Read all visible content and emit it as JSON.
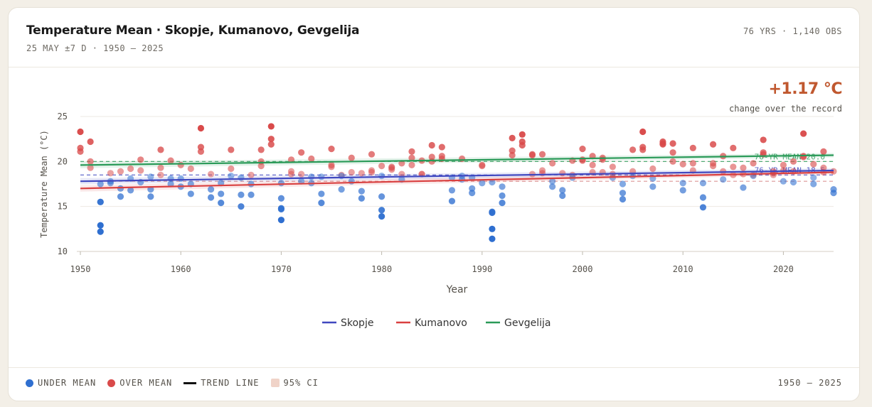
{
  "header": {
    "title": "Temperature Mean · Skopje, Kumanovo, Gevgelija",
    "subtitle": "25 MAY ±7 D · 1950 – 2025",
    "meta": "76 YRS · 1,140 OBS"
  },
  "summary": {
    "change_value": "+1.17 °C",
    "change_label": "change over the record"
  },
  "footer": {
    "legend": {
      "under_mean": "UNDER MEAN",
      "over_mean": "OVER MEAN",
      "trend_line": "TREND LINE",
      "ci": "95% CI"
    },
    "range": "1950 – 2025"
  },
  "colors": {
    "under_mean": "#2f6fd0",
    "over_mean": "#d94a4a",
    "ci": "#f0d3c8",
    "skopje": "#4048c0",
    "kumanovo": "#d94040",
    "gevgelija": "#2a9a58"
  },
  "chart_data": {
    "type": "scatter",
    "xlabel": "Year",
    "ylabel": "Temperature Mean (°C)",
    "xlim": [
      1950,
      2025
    ],
    "ylim": [
      10,
      25
    ],
    "xticks": [
      1950,
      1960,
      1970,
      1980,
      1990,
      2000,
      2010,
      2020
    ],
    "yticks": [
      10,
      15,
      20,
      25
    ],
    "grid": true,
    "legend_position": "bottom-center",
    "mean_lines": [
      {
        "label": "76-YR MEAN 20.0",
        "value": 20.0,
        "color": "#2a9a58"
      },
      {
        "label": "76-YR MEAN 18.5",
        "value": 18.5,
        "color": "#4048c0"
      },
      {
        "label": "",
        "value": 17.8,
        "color": "#d98a8a"
      }
    ],
    "series": [
      {
        "name": "Skopje",
        "trend": [
          [
            1950,
            17.8
          ],
          [
            2025,
            19.0
          ]
        ],
        "values": [
          [
            1950,
            21.1
          ],
          [
            1951,
            19.3
          ],
          [
            1952,
            15.5
          ],
          [
            1952,
            12.9
          ],
          [
            1952,
            12.2
          ],
          [
            1953,
            18.7
          ],
          [
            1954,
            18.9
          ],
          [
            1955,
            19.2
          ],
          [
            1956,
            17.7
          ],
          [
            1957,
            18.3
          ],
          [
            1958,
            18.5
          ],
          [
            1959,
            17.5
          ],
          [
            1960,
            19.6
          ],
          [
            1961,
            17.5
          ],
          [
            1962,
            21.6
          ],
          [
            1963,
            18.6
          ],
          [
            1964,
            17.6
          ],
          [
            1965,
            18.4
          ],
          [
            1966,
            18.2
          ],
          [
            1967,
            18.5
          ],
          [
            1968,
            19.5
          ],
          [
            1969,
            22.5
          ],
          [
            1970,
            15.9
          ],
          [
            1970,
            14.7
          ],
          [
            1970,
            13.5
          ],
          [
            1971,
            18.6
          ],
          [
            1972,
            17.8
          ],
          [
            1973,
            18.3
          ],
          [
            1974,
            18.3
          ],
          [
            1975,
            19.6
          ],
          [
            1976,
            18.5
          ],
          [
            1977,
            17.8
          ],
          [
            1978,
            18.7
          ],
          [
            1979,
            18.8
          ],
          [
            1980,
            16.1
          ],
          [
            1980,
            14.6
          ],
          [
            1980,
            13.9
          ],
          [
            1981,
            19.3
          ],
          [
            1982,
            19.8
          ],
          [
            1983,
            19.6
          ],
          [
            1984,
            18.6
          ],
          [
            1985,
            20.0
          ],
          [
            1986,
            20.3
          ],
          [
            1987,
            18.2
          ],
          [
            1988,
            18.4
          ],
          [
            1989,
            17.0
          ],
          [
            1990,
            17.6
          ],
          [
            1991,
            14.3
          ],
          [
            1991,
            12.5
          ],
          [
            1991,
            11.4
          ],
          [
            1992,
            17.2
          ],
          [
            1993,
            21.2
          ],
          [
            1994,
            21.8
          ],
          [
            1995,
            18.6
          ],
          [
            1996,
            18.7
          ],
          [
            1997,
            17.8
          ],
          [
            1998,
            16.8
          ],
          [
            1999,
            18.5
          ],
          [
            2000,
            20.1
          ],
          [
            2001,
            18.8
          ],
          [
            2002,
            18.8
          ],
          [
            2003,
            19.4
          ],
          [
            2004,
            17.5
          ],
          [
            2005,
            18.9
          ],
          [
            2006,
            21.3
          ],
          [
            2007,
            19.2
          ],
          [
            2008,
            22.0
          ],
          [
            2009,
            20.0
          ],
          [
            2010,
            17.6
          ],
          [
            2011,
            19.0
          ],
          [
            2012,
            17.6
          ],
          [
            2013,
            19.5
          ],
          [
            2014,
            18.9
          ],
          [
            2015,
            19.4
          ],
          [
            2016,
            19.3
          ],
          [
            2017,
            18.5
          ],
          [
            2018,
            20.8
          ],
          [
            2019,
            18.9
          ],
          [
            2020,
            17.8
          ],
          [
            2021,
            18.9
          ],
          [
            2022,
            20.5
          ],
          [
            2023,
            18.2
          ],
          [
            2024,
            18.8
          ],
          [
            2025,
            16.9
          ]
        ]
      },
      {
        "name": "Kumanovo",
        "trend": [
          [
            1950,
            17.0
          ],
          [
            2025,
            18.8
          ]
        ],
        "values": [
          [
            1950,
            23.3
          ],
          [
            1951,
            20.0
          ],
          [
            1952,
            17.5
          ],
          [
            1953,
            17.8
          ],
          [
            1954,
            17.0
          ],
          [
            1955,
            16.8
          ],
          [
            1956,
            20.2
          ],
          [
            1957,
            16.1
          ],
          [
            1958,
            19.3
          ],
          [
            1959,
            18.1
          ],
          [
            1960,
            17.2
          ],
          [
            1961,
            16.4
          ],
          [
            1962,
            23.7
          ],
          [
            1963,
            16.9
          ],
          [
            1964,
            16.4
          ],
          [
            1965,
            19.2
          ],
          [
            1966,
            16.3
          ],
          [
            1967,
            16.3
          ],
          [
            1968,
            21.3
          ],
          [
            1969,
            23.9
          ],
          [
            1970,
            17.6
          ],
          [
            1971,
            20.2
          ],
          [
            1972,
            18.6
          ],
          [
            1973,
            20.3
          ],
          [
            1974,
            16.4
          ],
          [
            1975,
            19.4
          ],
          [
            1976,
            18.4
          ],
          [
            1977,
            20.4
          ],
          [
            1978,
            16.7
          ],
          [
            1979,
            20.8
          ],
          [
            1980,
            19.5
          ],
          [
            1981,
            19.1
          ],
          [
            1982,
            18.0
          ],
          [
            1983,
            21.1
          ],
          [
            1984,
            18.6
          ],
          [
            1985,
            21.8
          ],
          [
            1986,
            21.6
          ],
          [
            1987,
            16.8
          ],
          [
            1988,
            20.3
          ],
          [
            1989,
            16.5
          ],
          [
            1990,
            19.5
          ],
          [
            1991,
            17.7
          ],
          [
            1992,
            16.2
          ],
          [
            1993,
            22.6
          ],
          [
            1994,
            23.0
          ],
          [
            1995,
            20.8
          ],
          [
            1996,
            20.8
          ],
          [
            1997,
            17.2
          ],
          [
            1998,
            16.2
          ],
          [
            1999,
            18.2
          ],
          [
            2000,
            21.4
          ],
          [
            2001,
            20.6
          ],
          [
            2002,
            20.2
          ],
          [
            2003,
            18.2
          ],
          [
            2004,
            16.5
          ],
          [
            2005,
            21.3
          ],
          [
            2006,
            23.3
          ],
          [
            2007,
            17.2
          ],
          [
            2008,
            22.2
          ],
          [
            2009,
            22.0
          ],
          [
            2010,
            16.8
          ],
          [
            2011,
            21.5
          ],
          [
            2012,
            16.0
          ],
          [
            2013,
            21.9
          ],
          [
            2014,
            18.0
          ],
          [
            2015,
            21.5
          ],
          [
            2016,
            17.1
          ],
          [
            2017,
            19.8
          ],
          [
            2018,
            22.4
          ],
          [
            2019,
            18.7
          ],
          [
            2020,
            19.6
          ],
          [
            2021,
            17.7
          ],
          [
            2022,
            23.1
          ],
          [
            2023,
            17.5
          ],
          [
            2024,
            21.1
          ],
          [
            2025,
            18.9
          ]
        ]
      },
      {
        "name": "Gevgelija",
        "trend": [
          [
            1950,
            19.6
          ],
          [
            2025,
            20.7
          ]
        ],
        "values": [
          [
            1950,
            21.5
          ],
          [
            1951,
            22.2
          ],
          [
            1952,
            15.5
          ],
          [
            1953,
            17.6
          ],
          [
            1954,
            16.1
          ],
          [
            1955,
            18.1
          ],
          [
            1956,
            19.0
          ],
          [
            1957,
            16.9
          ],
          [
            1958,
            21.3
          ],
          [
            1959,
            20.1
          ],
          [
            1960,
            18.1
          ],
          [
            1961,
            19.2
          ],
          [
            1962,
            21.1
          ],
          [
            1963,
            16.0
          ],
          [
            1964,
            15.4
          ],
          [
            1965,
            21.3
          ],
          [
            1966,
            15.0
          ],
          [
            1967,
            17.5
          ],
          [
            1968,
            20.0
          ],
          [
            1969,
            21.9
          ],
          [
            1970,
            14.8
          ],
          [
            1971,
            18.9
          ],
          [
            1972,
            21.0
          ],
          [
            1973,
            17.6
          ],
          [
            1974,
            15.4
          ],
          [
            1975,
            21.4
          ],
          [
            1976,
            16.9
          ],
          [
            1977,
            18.8
          ],
          [
            1978,
            15.9
          ],
          [
            1979,
            19.0
          ],
          [
            1980,
            18.4
          ],
          [
            1981,
            19.4
          ],
          [
            1982,
            18.6
          ],
          [
            1983,
            20.4
          ],
          [
            1984,
            20.1
          ],
          [
            1985,
            20.5
          ],
          [
            1986,
            20.6
          ],
          [
            1987,
            15.6
          ],
          [
            1988,
            18.0
          ],
          [
            1989,
            18.2
          ],
          [
            1990,
            19.6
          ],
          [
            1991,
            14.4
          ],
          [
            1992,
            15.4
          ],
          [
            1993,
            20.7
          ],
          [
            1994,
            22.2
          ],
          [
            1995,
            20.7
          ],
          [
            1996,
            19.0
          ],
          [
            1997,
            19.8
          ],
          [
            1998,
            18.7
          ],
          [
            1999,
            20.1
          ],
          [
            2000,
            20.2
          ],
          [
            2001,
            19.6
          ],
          [
            2002,
            20.4
          ],
          [
            2003,
            18.6
          ],
          [
            2004,
            15.8
          ],
          [
            2005,
            18.4
          ],
          [
            2006,
            21.6
          ],
          [
            2007,
            18.1
          ],
          [
            2008,
            21.9
          ],
          [
            2009,
            21.0
          ],
          [
            2010,
            19.7
          ],
          [
            2011,
            19.8
          ],
          [
            2012,
            14.9
          ],
          [
            2013,
            19.8
          ],
          [
            2014,
            20.6
          ],
          [
            2015,
            18.5
          ],
          [
            2016,
            18.6
          ],
          [
            2017,
            18.4
          ],
          [
            2018,
            21.0
          ],
          [
            2019,
            18.5
          ],
          [
            2020,
            19.0
          ],
          [
            2021,
            20.0
          ],
          [
            2022,
            20.6
          ],
          [
            2023,
            19.7
          ],
          [
            2024,
            19.3
          ],
          [
            2025,
            16.5
          ]
        ]
      }
    ]
  }
}
